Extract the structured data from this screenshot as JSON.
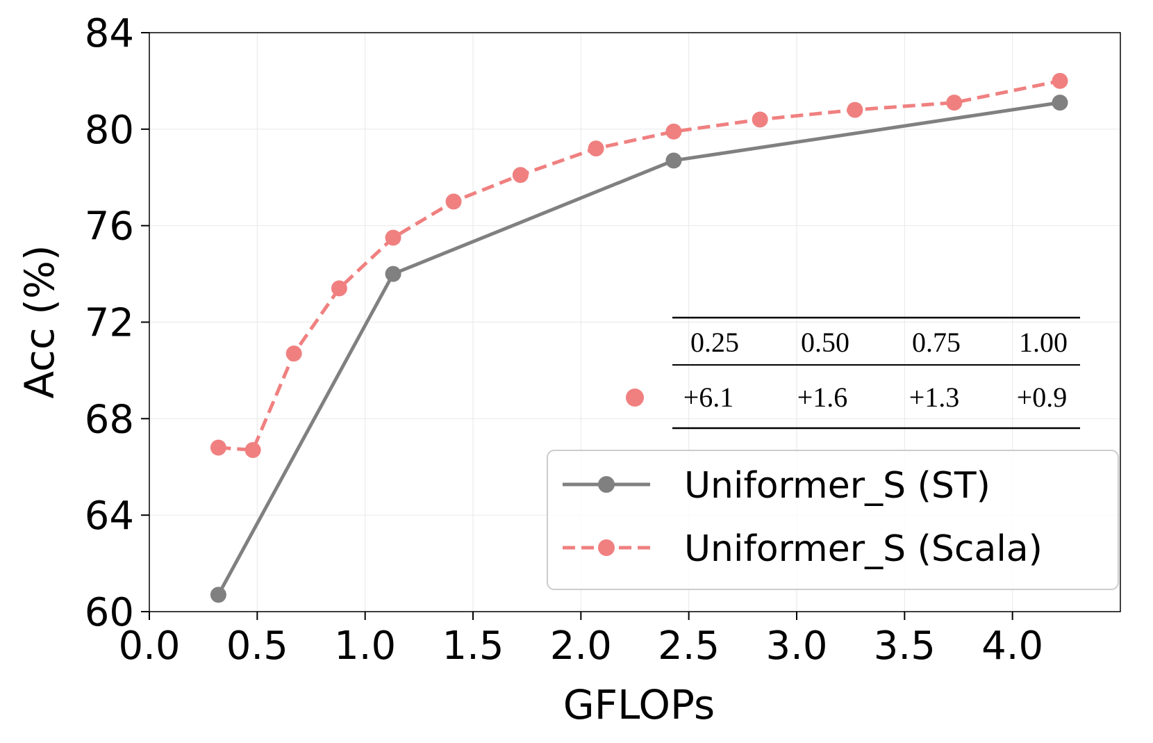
{
  "chart_data": {
    "type": "line",
    "xlabel": "GFLOPs",
    "ylabel": "Acc (%)",
    "xlim": [
      0.0,
      4.5
    ],
    "ylim": [
      60,
      84
    ],
    "xticks": [
      0.0,
      0.5,
      1.0,
      1.5,
      2.0,
      2.5,
      3.0,
      3.5,
      4.0
    ],
    "xtick_labels": [
      "0.0",
      "0.5",
      "1.0",
      "1.5",
      "2.0",
      "2.5",
      "3.0",
      "3.5",
      "4.0"
    ],
    "yticks": [
      60,
      64,
      68,
      72,
      76,
      80,
      84
    ],
    "ytick_labels": [
      "60",
      "64",
      "68",
      "72",
      "76",
      "80",
      "84"
    ],
    "grid": true,
    "legend_position": "bottom-right",
    "series": [
      {
        "name": "Uniformer_S (ST)",
        "color": "#808080",
        "line_style": "solid",
        "marker": "circle",
        "x": [
          0.32,
          1.13,
          2.43,
          4.22
        ],
        "y": [
          60.7,
          74.0,
          78.7,
          81.1
        ]
      },
      {
        "name": "Uniformer_S (Scala)",
        "color": "#f08080",
        "line_style": "dashed",
        "marker": "circle",
        "x": [
          0.32,
          0.48,
          0.67,
          0.88,
          1.13,
          1.41,
          1.72,
          2.07,
          2.43,
          2.83,
          3.27,
          3.73,
          4.22
        ],
        "y": [
          66.8,
          66.7,
          70.7,
          73.4,
          75.5,
          77.0,
          78.1,
          79.2,
          79.9,
          80.4,
          80.8,
          81.1,
          82.0
        ]
      }
    ],
    "inset_table": {
      "marker_color": "#f08080",
      "headers": [
        "0.25",
        "0.50",
        "0.75",
        "1.00"
      ],
      "values": [
        "+6.1",
        "+1.6",
        "+1.3",
        "+0.9"
      ]
    }
  }
}
